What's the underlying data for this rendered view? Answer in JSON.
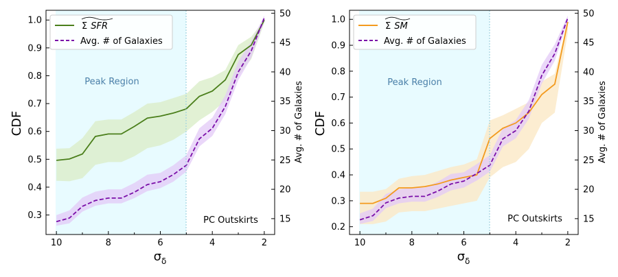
{
  "colors": {
    "peak_shade": "#e8fbff",
    "peak_line": "#9fd3e0",
    "purple": "#7a0ea8",
    "purple_band": "#e3c9f7",
    "sfr_line": "#4a7e1a",
    "sfr_band": "#dbeec9",
    "sm_line": "#f39a1d",
    "sm_band": "#fbe9c5"
  },
  "chart_data": [
    {
      "type": "line",
      "xlabel_base": "σ",
      "xlabel_sub": "δ",
      "ylabel": "CDF",
      "y2label": "Avg. # of Galaxies",
      "xlim": [
        10.4,
        1.6
      ],
      "ylim": [
        0.23,
        1.035
      ],
      "y2lim": [
        12.3,
        50.5
      ],
      "xticks": [
        10,
        8,
        6,
        4,
        2
      ],
      "xticks_minor": [
        9,
        7,
        5,
        3
      ],
      "yticks": [
        0.3,
        0.4,
        0.5,
        0.6,
        0.7,
        0.8,
        0.9,
        1.0
      ],
      "y2ticks": [
        15,
        20,
        25,
        30,
        35,
        40,
        45,
        50
      ],
      "peak_region": [
        10,
        5
      ],
      "peak_label": "Peak Region",
      "outskirts_label": "PC Outskirts",
      "x": [
        10,
        9.5,
        9,
        8.5,
        8,
        7.5,
        7,
        6.5,
        6,
        5.5,
        5,
        4.5,
        4,
        3.5,
        3,
        2.5,
        2
      ],
      "series": [
        {
          "name": "Σ SFR",
          "legend_base": "Σ",
          "legend_word": "SFR",
          "axis": "left",
          "style": "solid",
          "values": [
            0.496,
            0.501,
            0.519,
            0.582,
            0.591,
            0.591,
            0.618,
            0.648,
            0.655,
            0.666,
            0.681,
            0.726,
            0.745,
            0.785,
            0.876,
            0.91,
            1.0
          ],
          "band_lower": [
            0.423,
            0.421,
            0.432,
            0.48,
            0.49,
            0.49,
            0.511,
            0.54,
            0.55,
            0.57,
            0.6,
            0.64,
            0.67,
            0.71,
            0.8,
            0.86,
            0.99
          ],
          "band_upper": [
            0.538,
            0.54,
            0.576,
            0.637,
            0.643,
            0.643,
            0.67,
            0.7,
            0.705,
            0.72,
            0.735,
            0.78,
            0.795,
            0.82,
            0.91,
            0.94,
            1.0
          ]
        },
        {
          "name": "Avg. # of Galaxies",
          "axis": "right",
          "style": "dashed",
          "values": [
            14.5,
            15.1,
            17.1,
            18.1,
            18.5,
            18.5,
            19.5,
            20.8,
            21.3,
            22.5,
            24.1,
            28.6,
            30.4,
            34.1,
            40.0,
            43.6,
            49.2
          ],
          "band_lower": [
            13.8,
            14.2,
            16.2,
            17.2,
            17.6,
            17.6,
            18.5,
            19.7,
            20.2,
            21.3,
            23.0,
            27.3,
            29.1,
            32.8,
            38.6,
            42.4,
            48.6
          ],
          "band_upper": [
            15.6,
            16.4,
            18.6,
            19.6,
            20.0,
            20.0,
            21.1,
            22.5,
            22.8,
            24.1,
            25.8,
            30.4,
            32.2,
            36.0,
            41.8,
            45.2,
            49.6
          ]
        }
      ]
    },
    {
      "type": "line",
      "xlabel_base": "σ",
      "xlabel_sub": "δ",
      "ylabel": "CDF",
      "y2label": "Avg. # of Galaxies",
      "xlim": [
        10.4,
        1.6
      ],
      "ylim": [
        0.17,
        1.035
      ],
      "y2lim": [
        12.3,
        50.5
      ],
      "xticks": [
        10,
        8,
        6,
        4,
        2
      ],
      "xticks_minor": [
        9,
        7,
        5,
        3
      ],
      "yticks": [
        0.2,
        0.3,
        0.4,
        0.5,
        0.6,
        0.7,
        0.8,
        0.9,
        1.0
      ],
      "y2ticks": [
        15,
        20,
        25,
        30,
        35,
        40,
        45,
        50
      ],
      "peak_region": [
        10,
        5
      ],
      "peak_label": "Peak Region",
      "outskirts_label": "PC Outskirts",
      "x": [
        10,
        9.5,
        9,
        8.5,
        8,
        7.5,
        7,
        6.5,
        6,
        5.5,
        5,
        4.5,
        4,
        3.5,
        3,
        2.5,
        2
      ],
      "series": [
        {
          "name": "Σ SM",
          "legend_base": "Σ",
          "legend_word": "SM",
          "axis": "left",
          "style": "solid",
          "values": [
            0.29,
            0.29,
            0.31,
            0.35,
            0.35,
            0.355,
            0.365,
            0.38,
            0.39,
            0.4,
            0.54,
            0.58,
            0.6,
            0.64,
            0.71,
            0.75,
            0.99
          ],
          "band_lower": [
            0.21,
            0.21,
            0.22,
            0.255,
            0.26,
            0.26,
            0.27,
            0.28,
            0.29,
            0.3,
            0.39,
            0.43,
            0.45,
            0.5,
            0.6,
            0.64,
            0.95
          ],
          "band_upper": [
            0.335,
            0.335,
            0.345,
            0.385,
            0.395,
            0.4,
            0.415,
            0.43,
            0.44,
            0.46,
            0.61,
            0.63,
            0.655,
            0.68,
            0.76,
            0.79,
            1.0
          ]
        },
        {
          "name": "Avg. # of Galaxies",
          "axis": "right",
          "style": "dashed",
          "values": [
            14.8,
            15.5,
            17.7,
            18.5,
            18.8,
            18.8,
            19.7,
            20.9,
            21.4,
            22.7,
            24.1,
            28.6,
            30.0,
            33.3,
            39.4,
            43.1,
            49.2
          ],
          "band_lower": [
            14.1,
            14.6,
            16.8,
            17.6,
            17.9,
            17.9,
            18.7,
            19.8,
            20.3,
            21.5,
            23.0,
            27.3,
            28.7,
            32.0,
            38.0,
            41.9,
            48.6
          ],
          "band_upper": [
            15.9,
            16.7,
            19.2,
            20.0,
            20.3,
            20.3,
            21.3,
            22.6,
            22.9,
            24.3,
            25.8,
            30.4,
            31.8,
            35.2,
            41.2,
            44.7,
            49.6
          ]
        }
      ]
    }
  ]
}
